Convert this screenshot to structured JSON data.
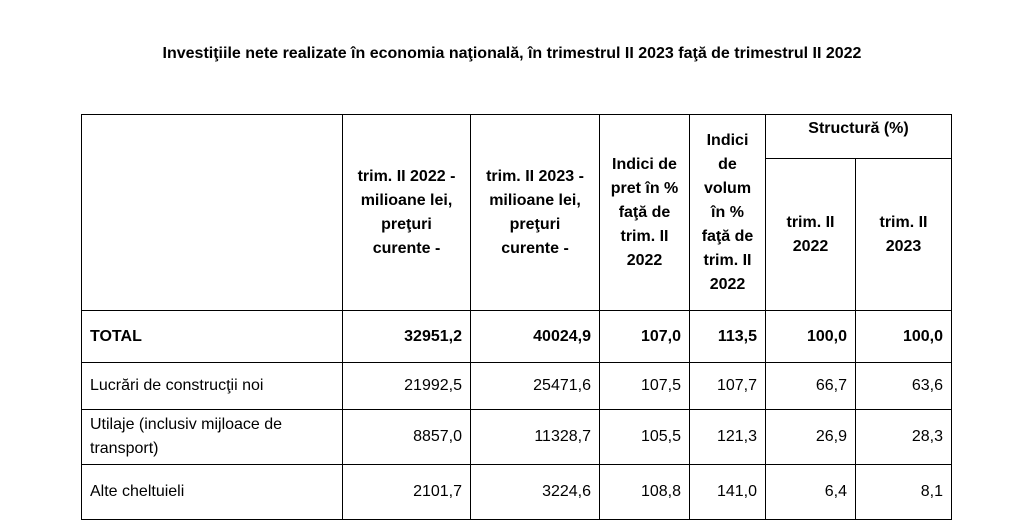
{
  "title": "Investiţiile nete realizate în economia naţională, în trimestrul II 2023 faţă de trimestrul II 2022",
  "table": {
    "headers": {
      "col1": "trim. II 2022 - milioane lei, preţuri curente -",
      "col2": "trim. II 2023 - milioane lei, preţuri curente -",
      "col3": "Indici de pret în % faţă de trim. II 2022",
      "col4": "Indici de volum în % faţă de trim. II 2022",
      "structure_group": "Structură (%)",
      "col5": "trim. II 2022",
      "col6": "trim. II 2023"
    },
    "rows": [
      {
        "label": "TOTAL",
        "values": [
          "32951,2",
          "40024,9",
          "107,0",
          "113,5",
          "100,0",
          "100,0"
        ]
      },
      {
        "label": "Lucrări de construcţii noi",
        "values": [
          "21992,5",
          "25471,6",
          "107,5",
          "107,7",
          "66,7",
          "63,6"
        ]
      },
      {
        "label": "Utilaje (inclusiv mijloace de transport)",
        "values": [
          "8857,0",
          "11328,7",
          "105,5",
          "121,3",
          "26,9",
          "28,3"
        ]
      },
      {
        "label": "Alte cheltuieli",
        "values": [
          "2101,7",
          "3224,6",
          "108,8",
          "141,0",
          "6,4",
          "8,1"
        ]
      }
    ]
  }
}
